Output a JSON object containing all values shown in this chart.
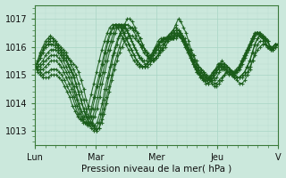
{
  "xlabel": "Pression niveau de la mer( hPa )",
  "ylim": [
    1012.5,
    1017.5
  ],
  "yticks": [
    1013,
    1014,
    1015,
    1016,
    1017
  ],
  "xtick_labels": [
    "Lun",
    "Mar",
    "Mer",
    "Jeu",
    "V"
  ],
  "xtick_positions": [
    0,
    48,
    96,
    144,
    192
  ],
  "bg_color": "#cbe8dc",
  "grid_color_major": "#a8d4c4",
  "grid_color_minor": "#b8ddd0",
  "line_color": "#1a5c1a",
  "marker": "+",
  "linewidth": 0.8,
  "markersize": 3,
  "markeredgewidth": 0.8,
  "total_hours": 192,
  "series": [
    [
      1015.3,
      1015.4,
      1015.6,
      1015.8,
      1016.0,
      1016.1,
      1016.2,
      1016.2,
      1016.1,
      1016.0,
      1015.9,
      1015.8,
      1015.7,
      1015.6,
      1015.5,
      1015.4,
      1015.3,
      1015.1,
      1014.8,
      1014.5,
      1014.1,
      1013.8,
      1013.5,
      1013.2,
      1013.0,
      1013.1,
      1013.3,
      1013.6,
      1014.0,
      1014.4,
      1014.8,
      1015.2,
      1015.5,
      1015.8,
      1016.0,
      1016.2,
      1016.3,
      1016.4,
      1016.4,
      1016.3,
      1016.2,
      1016.1,
      1016.0,
      1015.9,
      1015.8,
      1015.7,
      1015.7,
      1015.8,
      1015.9,
      1016.0,
      1016.1,
      1016.2,
      1016.3,
      1016.4,
      1016.5,
      1016.6,
      1016.6,
      1016.5,
      1016.3,
      1016.1,
      1015.9,
      1015.7,
      1015.5,
      1015.4,
      1015.3,
      1015.2,
      1015.1,
      1015.0,
      1014.9,
      1014.8,
      1014.7,
      1014.7,
      1014.8,
      1014.9,
      1015.0,
      1015.1,
      1015.1,
      1015.1,
      1015.0,
      1014.9,
      1014.9,
      1014.9,
      1015.0,
      1015.1,
      1015.3,
      1015.5,
      1015.7,
      1015.9,
      1016.0,
      1016.1,
      1016.1,
      1016.0,
      1015.9,
      1015.9,
      1016.0,
      1016.1
    ],
    [
      1015.3,
      1015.5,
      1015.7,
      1015.9,
      1016.1,
      1016.2,
      1016.3,
      1016.3,
      1016.2,
      1016.1,
      1016.0,
      1015.9,
      1015.8,
      1015.6,
      1015.4,
      1015.2,
      1015.0,
      1014.7,
      1014.4,
      1014.1,
      1013.8,
      1013.5,
      1013.3,
      1013.1,
      1013.0,
      1013.1,
      1013.4,
      1013.8,
      1014.2,
      1014.6,
      1015.0,
      1015.4,
      1015.7,
      1016.0,
      1016.3,
      1016.5,
      1016.6,
      1016.7,
      1016.7,
      1016.6,
      1016.5,
      1016.3,
      1016.1,
      1015.9,
      1015.7,
      1015.6,
      1015.5,
      1015.6,
      1015.7,
      1015.8,
      1015.9,
      1016.0,
      1016.2,
      1016.4,
      1016.6,
      1016.8,
      1017.0,
      1016.9,
      1016.7,
      1016.5,
      1016.2,
      1015.9,
      1015.7,
      1015.5,
      1015.3,
      1015.2,
      1015.1,
      1014.9,
      1014.8,
      1014.7,
      1014.6,
      1014.6,
      1014.7,
      1014.8,
      1015.0,
      1015.1,
      1015.1,
      1015.0,
      1014.9,
      1014.8,
      1014.7,
      1014.7,
      1014.8,
      1015.0,
      1015.2,
      1015.5,
      1015.8,
      1016.1,
      1016.2,
      1016.2,
      1016.1,
      1016.0,
      1015.9,
      1015.9,
      1016.0,
      1016.1
    ],
    [
      1015.3,
      1015.5,
      1015.8,
      1016.0,
      1016.2,
      1016.3,
      1016.4,
      1016.3,
      1016.2,
      1016.0,
      1015.9,
      1015.7,
      1015.6,
      1015.4,
      1015.2,
      1015.0,
      1014.7,
      1014.4,
      1014.1,
      1013.8,
      1013.5,
      1013.3,
      1013.1,
      1013.0,
      1013.1,
      1013.3,
      1013.6,
      1014.1,
      1014.5,
      1015.0,
      1015.4,
      1015.8,
      1016.1,
      1016.4,
      1016.6,
      1016.8,
      1017.0,
      1017.0,
      1016.9,
      1016.7,
      1016.5,
      1016.3,
      1016.1,
      1015.9,
      1015.7,
      1015.6,
      1015.5,
      1015.6,
      1015.7,
      1015.9,
      1016.0,
      1016.2,
      1016.4,
      1016.5,
      1016.6,
      1016.7,
      1016.6,
      1016.5,
      1016.3,
      1016.1,
      1015.9,
      1015.7,
      1015.5,
      1015.3,
      1015.2,
      1015.1,
      1015.0,
      1014.9,
      1014.8,
      1014.8,
      1014.8,
      1014.9,
      1015.1,
      1015.2,
      1015.3,
      1015.3,
      1015.2,
      1015.1,
      1015.0,
      1014.9,
      1014.9,
      1015.0,
      1015.1,
      1015.3,
      1015.5,
      1015.8,
      1016.1,
      1016.3,
      1016.4,
      1016.4,
      1016.3,
      1016.2,
      1016.0,
      1015.9,
      1016.0,
      1016.1
    ],
    [
      1015.3,
      1015.4,
      1015.6,
      1015.8,
      1016.0,
      1016.1,
      1016.1,
      1016.1,
      1016.0,
      1015.9,
      1015.8,
      1015.6,
      1015.5,
      1015.3,
      1015.1,
      1014.9,
      1014.6,
      1014.3,
      1014.0,
      1013.7,
      1013.5,
      1013.3,
      1013.2,
      1013.2,
      1013.3,
      1013.6,
      1014.0,
      1014.5,
      1014.9,
      1015.3,
      1015.7,
      1016.0,
      1016.3,
      1016.5,
      1016.7,
      1016.8,
      1016.8,
      1016.7,
      1016.6,
      1016.4,
      1016.2,
      1016.0,
      1015.8,
      1015.7,
      1015.6,
      1015.5,
      1015.5,
      1015.6,
      1015.8,
      1015.9,
      1016.1,
      1016.2,
      1016.3,
      1016.4,
      1016.4,
      1016.5,
      1016.4,
      1016.3,
      1016.1,
      1015.9,
      1015.7,
      1015.5,
      1015.3,
      1015.2,
      1015.1,
      1015.0,
      1014.9,
      1014.9,
      1014.9,
      1015.0,
      1015.1,
      1015.2,
      1015.3,
      1015.3,
      1015.2,
      1015.1,
      1015.0,
      1014.9,
      1014.9,
      1014.9,
      1015.0,
      1015.1,
      1015.3,
      1015.5,
      1015.8,
      1016.1,
      1016.3,
      1016.4,
      1016.4,
      1016.3,
      1016.2,
      1016.0,
      1015.9,
      1016.0,
      1016.1
    ],
    [
      1015.3,
      1015.3,
      1015.4,
      1015.5,
      1015.7,
      1015.8,
      1015.9,
      1015.9,
      1015.9,
      1015.8,
      1015.7,
      1015.5,
      1015.3,
      1015.1,
      1014.9,
      1014.6,
      1014.3,
      1014.0,
      1013.7,
      1013.5,
      1013.3,
      1013.2,
      1013.3,
      1013.5,
      1013.8,
      1014.2,
      1014.7,
      1015.1,
      1015.5,
      1015.9,
      1016.2,
      1016.5,
      1016.7,
      1016.8,
      1016.8,
      1016.7,
      1016.5,
      1016.3,
      1016.1,
      1015.9,
      1015.7,
      1015.6,
      1015.5,
      1015.5,
      1015.6,
      1015.7,
      1015.9,
      1016.0,
      1016.1,
      1016.2,
      1016.3,
      1016.3,
      1016.3,
      1016.3,
      1016.4,
      1016.4,
      1016.4,
      1016.2,
      1016.0,
      1015.8,
      1015.6,
      1015.4,
      1015.2,
      1015.1,
      1015.0,
      1014.9,
      1014.9,
      1014.9,
      1015.0,
      1015.1,
      1015.2,
      1015.3,
      1015.3,
      1015.2,
      1015.1,
      1015.0,
      1015.0,
      1015.0,
      1015.1,
      1015.2,
      1015.4,
      1015.6,
      1015.8,
      1016.0,
      1016.3,
      1016.5,
      1016.5,
      1016.4,
      1016.3,
      1016.2,
      1016.0,
      1016.0,
      1016.0,
      1016.1,
      1016.1
    ],
    [
      1015.3,
      1015.3,
      1015.3,
      1015.4,
      1015.5,
      1015.6,
      1015.7,
      1015.7,
      1015.7,
      1015.6,
      1015.5,
      1015.3,
      1015.1,
      1014.9,
      1014.7,
      1014.4,
      1014.1,
      1013.8,
      1013.5,
      1013.3,
      1013.2,
      1013.3,
      1013.5,
      1013.8,
      1014.2,
      1014.7,
      1015.1,
      1015.5,
      1015.9,
      1016.2,
      1016.5,
      1016.7,
      1016.8,
      1016.8,
      1016.7,
      1016.6,
      1016.4,
      1016.2,
      1016.0,
      1015.8,
      1015.6,
      1015.5,
      1015.4,
      1015.4,
      1015.5,
      1015.7,
      1015.9,
      1016.0,
      1016.2,
      1016.2,
      1016.3,
      1016.3,
      1016.3,
      1016.3,
      1016.3,
      1016.4,
      1016.3,
      1016.2,
      1016.0,
      1015.8,
      1015.5,
      1015.3,
      1015.1,
      1015.0,
      1014.9,
      1014.8,
      1014.8,
      1014.9,
      1015.0,
      1015.2,
      1015.3,
      1015.4,
      1015.3,
      1015.2,
      1015.1,
      1015.0,
      1015.0,
      1015.1,
      1015.2,
      1015.4,
      1015.6,
      1015.8,
      1016.0,
      1016.2,
      1016.4,
      1016.5,
      1016.5,
      1016.4,
      1016.3,
      1016.2,
      1016.0,
      1016.0,
      1016.1,
      1016.1
    ],
    [
      1015.3,
      1015.2,
      1015.2,
      1015.2,
      1015.3,
      1015.4,
      1015.5,
      1015.5,
      1015.5,
      1015.4,
      1015.3,
      1015.1,
      1014.9,
      1014.7,
      1014.5,
      1014.2,
      1013.9,
      1013.6,
      1013.4,
      1013.3,
      1013.3,
      1013.5,
      1013.8,
      1014.2,
      1014.6,
      1015.0,
      1015.4,
      1015.8,
      1016.2,
      1016.5,
      1016.7,
      1016.8,
      1016.8,
      1016.7,
      1016.5,
      1016.3,
      1016.1,
      1015.9,
      1015.7,
      1015.5,
      1015.4,
      1015.3,
      1015.3,
      1015.4,
      1015.5,
      1015.7,
      1015.9,
      1016.1,
      1016.2,
      1016.3,
      1016.3,
      1016.3,
      1016.3,
      1016.3,
      1016.4,
      1016.4,
      1016.3,
      1016.2,
      1016.0,
      1015.8,
      1015.5,
      1015.3,
      1015.1,
      1015.0,
      1014.9,
      1014.8,
      1014.8,
      1014.9,
      1015.1,
      1015.2,
      1015.4,
      1015.4,
      1015.3,
      1015.2,
      1015.1,
      1015.1,
      1015.1,
      1015.2,
      1015.3,
      1015.5,
      1015.7,
      1015.9,
      1016.1,
      1016.3,
      1016.5,
      1016.5,
      1016.4,
      1016.3,
      1016.2,
      1016.0,
      1016.0,
      1016.0,
      1016.1,
      1016.1
    ],
    [
      1015.3,
      1015.2,
      1015.1,
      1015.0,
      1015.1,
      1015.1,
      1015.2,
      1015.2,
      1015.2,
      1015.1,
      1015.0,
      1014.8,
      1014.6,
      1014.4,
      1014.2,
      1013.9,
      1013.6,
      1013.4,
      1013.3,
      1013.3,
      1013.5,
      1013.8,
      1014.2,
      1014.6,
      1015.0,
      1015.4,
      1015.8,
      1016.2,
      1016.5,
      1016.7,
      1016.8,
      1016.8,
      1016.7,
      1016.5,
      1016.3,
      1016.1,
      1015.9,
      1015.7,
      1015.5,
      1015.4,
      1015.3,
      1015.3,
      1015.3,
      1015.4,
      1015.6,
      1015.8,
      1016.0,
      1016.2,
      1016.3,
      1016.3,
      1016.3,
      1016.3,
      1016.4,
      1016.5,
      1016.5,
      1016.4,
      1016.3,
      1016.1,
      1015.9,
      1015.7,
      1015.5,
      1015.2,
      1015.0,
      1014.9,
      1014.8,
      1014.7,
      1014.8,
      1014.9,
      1015.1,
      1015.3,
      1015.4,
      1015.4,
      1015.3,
      1015.2,
      1015.1,
      1015.1,
      1015.2,
      1015.3,
      1015.5,
      1015.7,
      1015.9,
      1016.1,
      1016.3,
      1016.5,
      1016.5,
      1016.4,
      1016.3,
      1016.2,
      1016.0,
      1016.0,
      1016.1,
      1016.1
    ],
    [
      1015.3,
      1015.1,
      1015.0,
      1014.9,
      1014.9,
      1014.9,
      1015.0,
      1015.0,
      1015.0,
      1014.9,
      1014.8,
      1014.6,
      1014.4,
      1014.2,
      1013.9,
      1013.7,
      1013.5,
      1013.4,
      1013.4,
      1013.6,
      1013.9,
      1014.3,
      1014.7,
      1015.1,
      1015.5,
      1015.9,
      1016.2,
      1016.5,
      1016.7,
      1016.8,
      1016.8,
      1016.7,
      1016.5,
      1016.3,
      1016.1,
      1015.9,
      1015.7,
      1015.5,
      1015.4,
      1015.3,
      1015.3,
      1015.3,
      1015.4,
      1015.6,
      1015.8,
      1016.0,
      1016.2,
      1016.3,
      1016.3,
      1016.3,
      1016.4,
      1016.5,
      1016.5,
      1016.5,
      1016.4,
      1016.3,
      1016.1,
      1015.9,
      1015.7,
      1015.5,
      1015.3,
      1015.1,
      1014.9,
      1014.8,
      1014.7,
      1014.7,
      1014.8,
      1015.0,
      1015.2,
      1015.4,
      1015.5,
      1015.4,
      1015.3,
      1015.2,
      1015.1,
      1015.1,
      1015.2,
      1015.4,
      1015.6,
      1015.8,
      1016.0,
      1016.2,
      1016.4,
      1016.5,
      1016.5,
      1016.4,
      1016.3,
      1016.2,
      1016.0,
      1016.0,
      1016.1,
      1016.1
    ]
  ]
}
